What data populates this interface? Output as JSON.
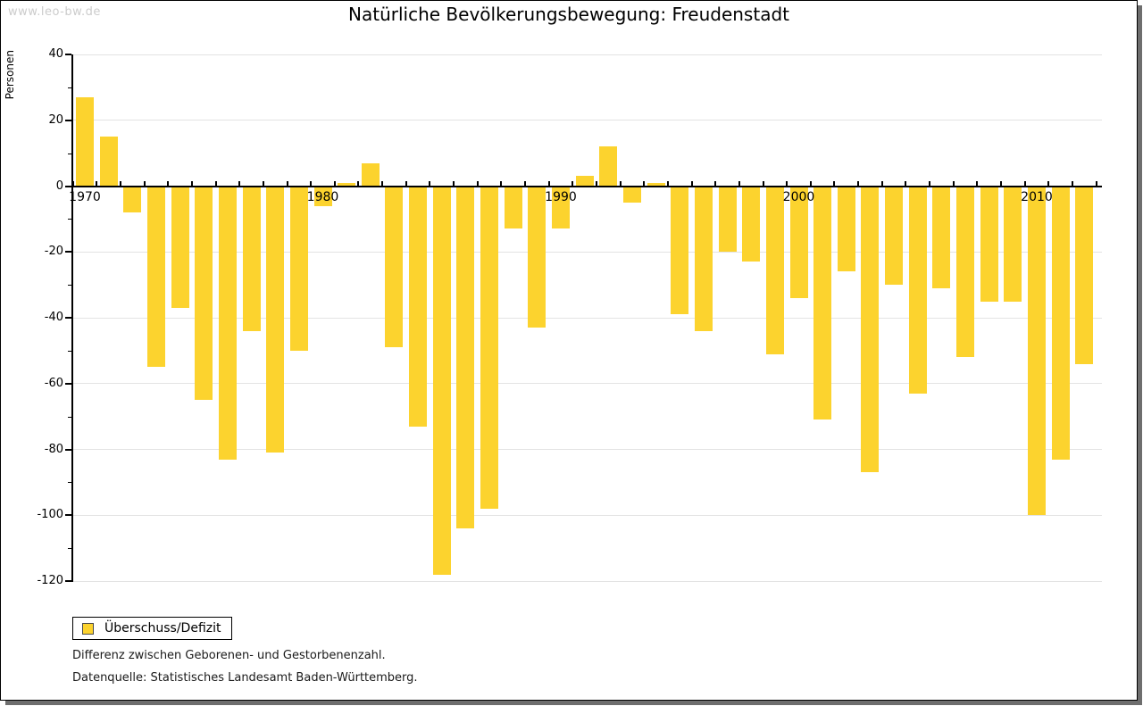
{
  "watermark": "www.leo-bw.de",
  "title": "Natürliche Bevölkerungsbewegung: Freudenstadt",
  "legend": {
    "label": "Überschuss/Defizit"
  },
  "footnotes": {
    "line1": "Differenz zwischen Geborenen- und Gestorbenenzahl.",
    "line2": "Datenquelle: Statistisches Landesamt Baden-Württemberg."
  },
  "chart_data": {
    "type": "bar",
    "title": "Natürliche Bevölkerungsbewegung: Freudenstadt",
    "xlabel": "",
    "ylabel": "Personen",
    "ylim": [
      -120,
      40
    ],
    "ytick_step": 20,
    "ytick_labels": [
      "40",
      "20",
      "0",
      "-20",
      "-40",
      "-60",
      "-80",
      "-100",
      "-120"
    ],
    "grid": true,
    "legend_position": "bottom-left",
    "bar_color": "#FCD32E",
    "x": [
      1970,
      1971,
      1972,
      1973,
      1974,
      1975,
      1976,
      1977,
      1978,
      1979,
      1980,
      1981,
      1982,
      1983,
      1984,
      1985,
      1986,
      1987,
      1988,
      1989,
      1990,
      1991,
      1992,
      1993,
      1994,
      1995,
      1996,
      1997,
      1998,
      1999,
      2000,
      2001,
      2002,
      2003,
      2004,
      2005,
      2006,
      2007,
      2008,
      2009,
      2010,
      2011,
      2012
    ],
    "series": [
      {
        "name": "Überschuss/Defizit",
        "values": [
          27,
          15,
          -8,
          -55,
          -37,
          -65,
          -83,
          -44,
          -81,
          -50,
          -6,
          1,
          7,
          -49,
          -73,
          -118,
          -104,
          -98,
          -13,
          -43,
          -13,
          3,
          12,
          -5,
          1,
          -39,
          -44,
          -20,
          -23,
          -51,
          -34,
          -71,
          -26,
          -87,
          -30,
          -63,
          -31,
          -52,
          -35,
          -35,
          -100,
          -83,
          -54
        ]
      }
    ],
    "xtick_labeled_years": [
      1970,
      1980,
      1990,
      2000,
      2010
    ]
  }
}
